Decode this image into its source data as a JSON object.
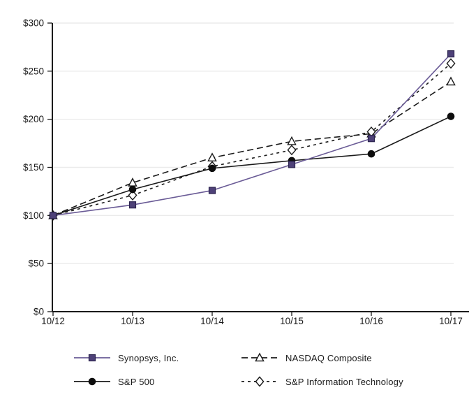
{
  "theme": {
    "background_color": "#ffffff",
    "axis_color": "#1a1a1a",
    "grid_color": "#ebebeb",
    "text_color": "#1a1a1a",
    "accent_purple": "#6a5b96"
  },
  "chart_data": {
    "type": "line",
    "title": "",
    "xlabel": "",
    "ylabel": "",
    "x": [
      "10/12",
      "10/13",
      "10/14",
      "10/15",
      "10/16",
      "10/17"
    ],
    "ylim": [
      0,
      300
    ],
    "yticks": [
      {
        "value": 0,
        "label": "$0"
      },
      {
        "value": 50,
        "label": "$50"
      },
      {
        "value": 100,
        "label": "$100"
      },
      {
        "value": 150,
        "label": "$150"
      },
      {
        "value": 200,
        "label": "$200"
      },
      {
        "value": 250,
        "label": "$250"
      },
      {
        "value": 300,
        "label": "$300"
      }
    ],
    "grid": true,
    "legend_position": "bottom",
    "series": [
      {
        "id": "synopsys",
        "name": "Synopsys, Inc.",
        "values": [
          100,
          111,
          126,
          153,
          180,
          268
        ],
        "color": "#6a5b96",
        "dash": "",
        "marker": "square",
        "marker_fill": "#4e4178",
        "marker_stroke": "#2b234e"
      },
      {
        "id": "nasdaq-composite",
        "name": "NASDAQ Composite",
        "values": [
          100,
          134,
          160,
          177,
          185,
          239
        ],
        "color": "#1a1a1a",
        "dash": "9 5",
        "marker": "triangle-open",
        "marker_fill": "#ffffff",
        "marker_stroke": "#1a1a1a"
      },
      {
        "id": "sp-500",
        "name": "S&P 500",
        "values": [
          100,
          127,
          149,
          157,
          164,
          203
        ],
        "color": "#1a1a1a",
        "dash": "",
        "marker": "circle",
        "marker_fill": "#0d0d0d",
        "marker_stroke": "#0d0d0d"
      },
      {
        "id": "sp-information-technology",
        "name": "S&P Information Technology",
        "values": [
          100,
          121,
          151,
          168,
          187,
          258
        ],
        "color": "#1a1a1a",
        "dash": "4 5",
        "marker": "diamond-open",
        "marker_fill": "#ffffff",
        "marker_stroke": "#1a1a1a"
      }
    ],
    "z_order": [
      1,
      3,
      2,
      0
    ]
  }
}
